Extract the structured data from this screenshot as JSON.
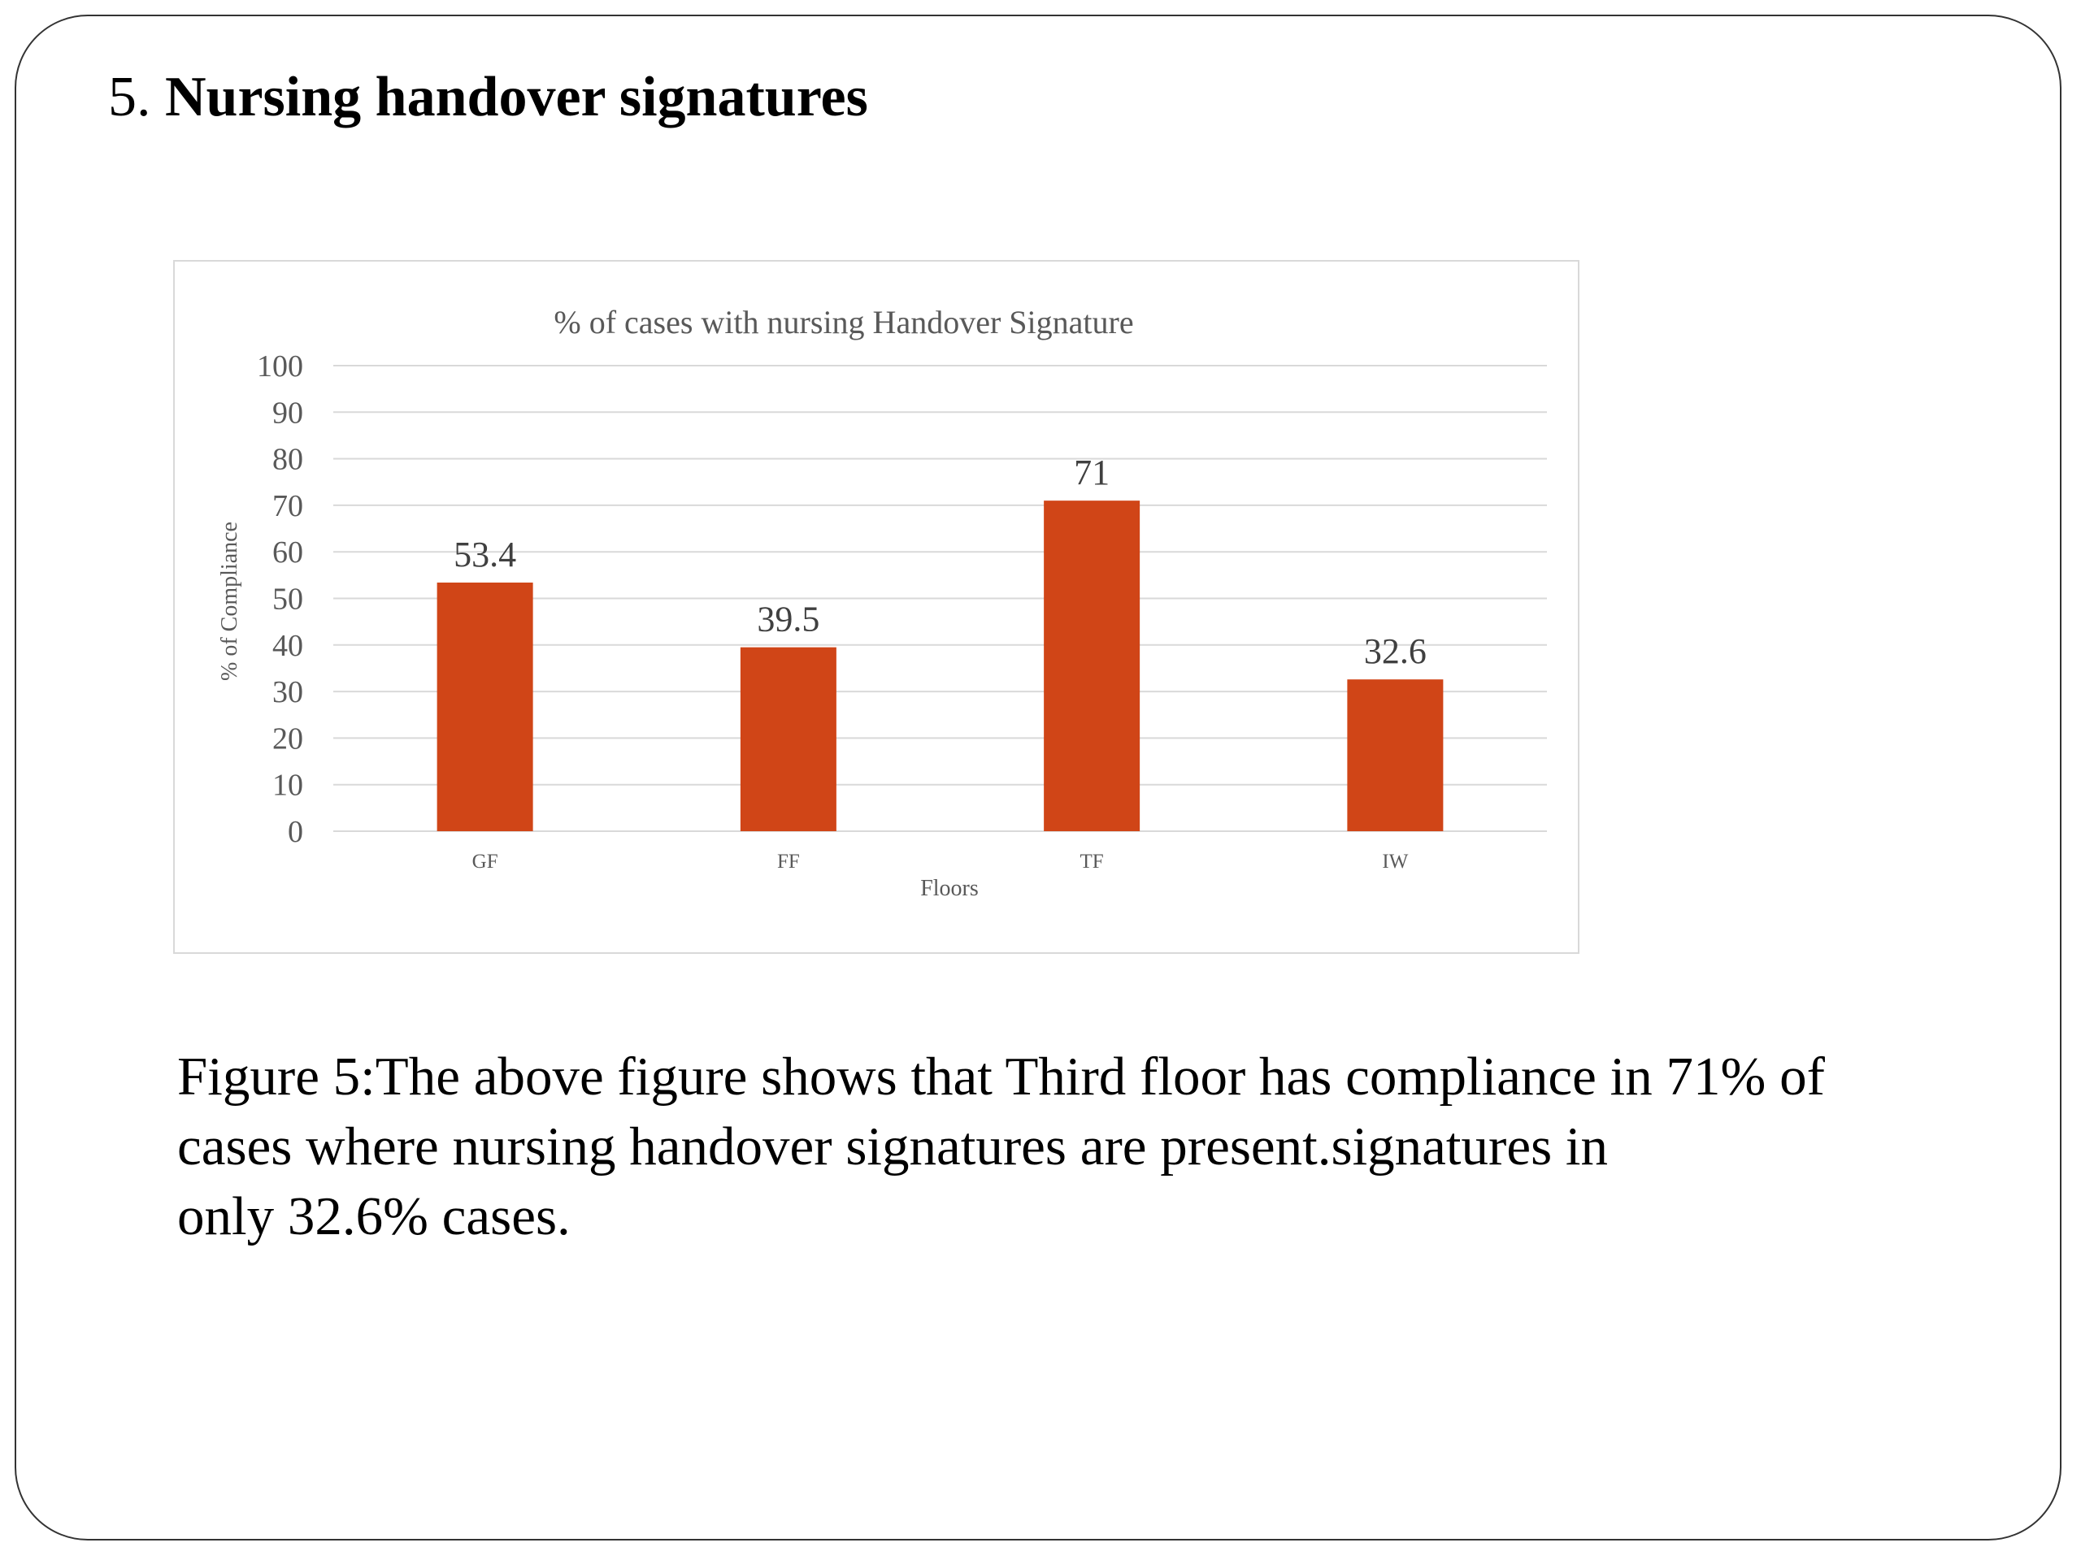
{
  "slide": {
    "heading_number": "5.",
    "heading_text": "Nursing handover signatures",
    "caption_lines": [
      "Figure 5:The above figure shows that Third floor has compliance in 71% of",
      "cases where nursing handover signatures are present.signatures in",
      "only 32.6% cases."
    ]
  },
  "colors": {
    "bar": "#d04517",
    "gridline": "#d9d9d9",
    "axis_text": "#595959",
    "data_label": "#404040"
  },
  "chart_data": {
    "type": "bar",
    "title": "% of cases with  nursing Handover Signature",
    "xlabel": "Floors",
    "ylabel": "% of Compliance",
    "categories": [
      "GF",
      "FF",
      "TF",
      "IW"
    ],
    "values": [
      53.4,
      39.5,
      71,
      32.6
    ],
    "data_labels": [
      "53.4",
      "39.5",
      "71",
      "32.6"
    ],
    "ylim": [
      0,
      100
    ],
    "yticks": [
      "0",
      "10",
      "20",
      "30",
      "40",
      "50",
      "60",
      "70",
      "80",
      "90",
      "100"
    ],
    "grid": true,
    "legend": "none"
  }
}
